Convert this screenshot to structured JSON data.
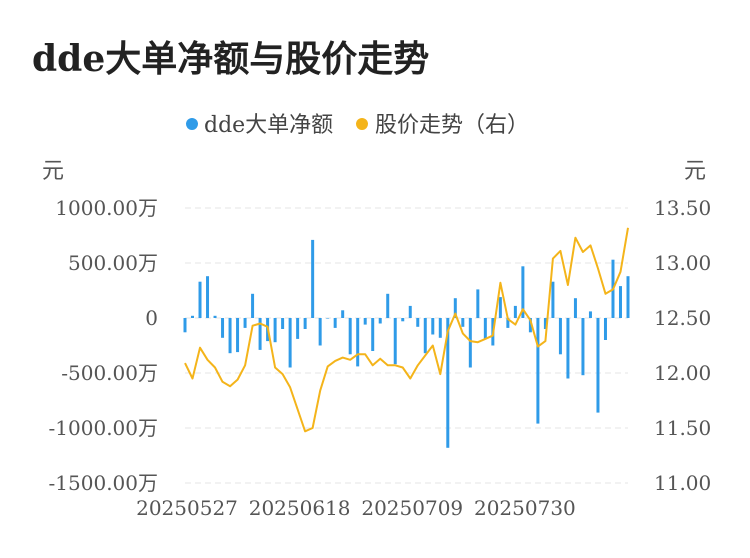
{
  "title": "dde大单净额与股价走势",
  "chart_data": {
    "type": "bar",
    "colors": {
      "bar": "#2f9be8",
      "line": "#f4b41a"
    },
    "legend": {
      "position": "top-center",
      "items": [
        {
          "name": "dde大单净额",
          "color": "#2f9be8"
        },
        {
          "name": "股价走势（右）",
          "color": "#f4b41a"
        }
      ]
    },
    "y_left": {
      "unit": "元",
      "lim": [
        -1500,
        1000
      ],
      "ticks": [
        {
          "v": 1000,
          "label": "1000.00万"
        },
        {
          "v": 500,
          "label": "500.00万"
        },
        {
          "v": 0,
          "label": "0"
        },
        {
          "v": -500,
          "label": "-500.00万"
        },
        {
          "v": -1000,
          "label": "-1000.00万"
        },
        {
          "v": -1500,
          "label": "-1500.00万"
        }
      ]
    },
    "y_right": {
      "unit": "元",
      "lim": [
        11.0,
        13.5
      ],
      "ticks": [
        {
          "v": 13.5,
          "label": "13.50"
        },
        {
          "v": 13.0,
          "label": "13.00"
        },
        {
          "v": 12.5,
          "label": "12.50"
        },
        {
          "v": 12.0,
          "label": "12.00"
        },
        {
          "v": 11.5,
          "label": "11.50"
        },
        {
          "v": 11.0,
          "label": "11.00"
        }
      ]
    },
    "x_tick_labels": [
      {
        "index": 0,
        "label": "20250527"
      },
      {
        "index": 15,
        "label": "20250618"
      },
      {
        "index": 30,
        "label": "20250709"
      },
      {
        "index": 45,
        "label": "20250730"
      }
    ],
    "series": [
      {
        "name": "dde大单净额",
        "axis": "left",
        "type": "bar",
        "values": [
          -130,
          20,
          330,
          380,
          20,
          -180,
          -320,
          -310,
          -90,
          220,
          -290,
          -210,
          -220,
          -100,
          -450,
          -190,
          -100,
          710,
          -250,
          -5,
          -90,
          70,
          -330,
          -440,
          -60,
          -300,
          -50,
          220,
          -420,
          -30,
          110,
          -80,
          -320,
          -150,
          -180,
          -1180,
          180,
          -80,
          -450,
          260,
          -190,
          -250,
          190,
          -90,
          110,
          470,
          -130,
          -960,
          -100,
          330,
          -330,
          -550,
          180,
          -520,
          60,
          -860,
          -200,
          530,
          290,
          380
        ]
      },
      {
        "name": "股价走势（右）",
        "axis": "right",
        "type": "line",
        "values": [
          12.09,
          11.95,
          12.23,
          12.12,
          12.05,
          11.92,
          11.88,
          11.94,
          12.07,
          12.43,
          12.45,
          12.42,
          12.05,
          11.99,
          11.87,
          11.67,
          11.47,
          11.5,
          11.84,
          12.06,
          12.11,
          12.14,
          12.12,
          12.17,
          12.17,
          12.07,
          12.13,
          12.07,
          12.07,
          12.05,
          11.95,
          12.07,
          12.16,
          12.25,
          11.99,
          12.38,
          12.54,
          12.36,
          12.29,
          12.28,
          12.31,
          12.34,
          12.82,
          12.49,
          12.44,
          12.58,
          12.48,
          12.24,
          12.29,
          13.04,
          13.11,
          12.8,
          13.23,
          13.1,
          13.16,
          12.95,
          12.72,
          12.76,
          12.92,
          13.32
        ]
      }
    ]
  }
}
